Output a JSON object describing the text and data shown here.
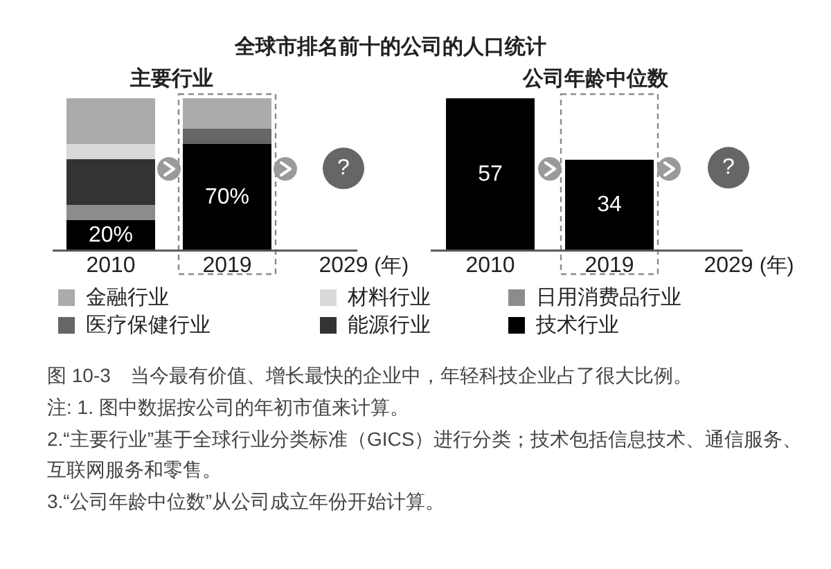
{
  "chart_data": [
    {
      "type": "other",
      "title": "全球市排名前十的公司的人口统计",
      "annotations": [
        "图 10-3　当今最有价值、增长最快的企业中，年轻科技企业占了很大比例。",
        "注: 1. 图中数据按公司的年初市值来计算。",
        "2.“主要行业”基于全球行业分类标准（GICS）进行分类；技术包括信息技术、通信服务、互联网服务和零售。",
        "3.“公司年龄中位数”从公司成立年份开始计算。"
      ]
    },
    {
      "type": "bar",
      "stacked": true,
      "title": "主要行业",
      "xlabel": "(年)",
      "categories": [
        "2010",
        "2019",
        "2029"
      ],
      "series": [
        {
          "name": "技术行业",
          "color": "#000000",
          "values": [
            20,
            70,
            null
          ],
          "value_labels": [
            "20%",
            "70%",
            null
          ]
        },
        {
          "name": "日用消费品行业",
          "color": "#8c8c8c",
          "values": [
            10,
            null,
            null
          ]
        },
        {
          "name": "能源行业",
          "color": "#333333",
          "values": [
            30,
            null,
            null
          ]
        },
        {
          "name": "材料行业",
          "color": "#d9d9d9",
          "values": [
            10,
            null,
            null
          ]
        },
        {
          "name": "医疗保健行业",
          "color": "#666666",
          "values": [
            null,
            10,
            null
          ]
        },
        {
          "name": "金融行业",
          "color": "#ababab",
          "values": [
            30,
            20,
            null
          ]
        }
      ],
      "ylim": [
        0,
        100
      ],
      "tick_labels": "x",
      "legend": "bottom",
      "annotations": [
        {
          "text": "?",
          "x": "2029",
          "y": 54
        }
      ]
    },
    {
      "type": "bar",
      "title": "公司年龄中位数",
      "xlabel": "(年)",
      "categories": [
        "2010",
        "2019",
        "2029"
      ],
      "values": [
        57,
        34,
        null
      ],
      "color": "#000000",
      "data_labels": true,
      "ylim": [
        0,
        57
      ],
      "tick_labels": "x",
      "annotations": [
        {
          "text": "?",
          "x": "2029",
          "y": 31
        }
      ]
    }
  ]
}
